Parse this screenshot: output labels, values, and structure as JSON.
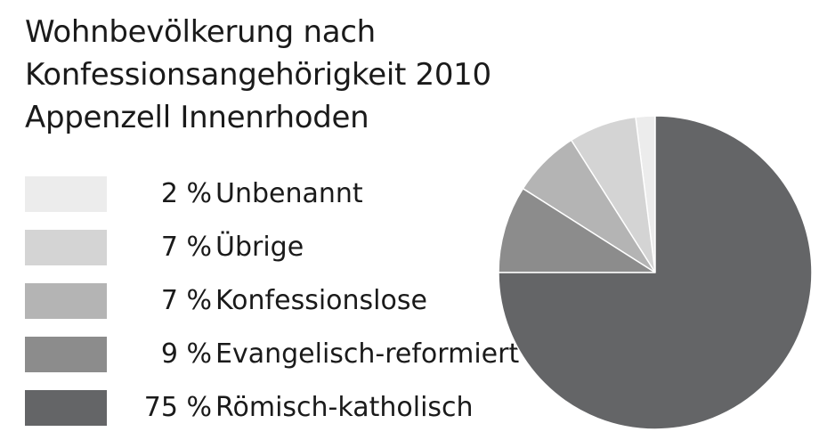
{
  "chart_data": {
    "type": "pie",
    "title_lines": [
      "Wohnbevölkerung nach",
      "Konfessionsangehörigkeit 2010",
      "Appenzell Innenrhoden"
    ],
    "slices": [
      {
        "label": "Unbenannt",
        "value": 2,
        "display": "2 %",
        "color": "#ececec"
      },
      {
        "label": "Übrige",
        "value": 7,
        "display": "7 %",
        "color": "#d4d4d4"
      },
      {
        "label": "Konfessionslose",
        "value": 7,
        "display": "7 %",
        "color": "#b4b4b4"
      },
      {
        "label": "Evangelisch-reformiert",
        "value": 9,
        "display": "9 %",
        "color": "#8c8c8c"
      },
      {
        "label": "Römisch-katholisch",
        "value": 75,
        "display": "75 %",
        "color": "#646567"
      }
    ],
    "legend_placement": "left"
  }
}
